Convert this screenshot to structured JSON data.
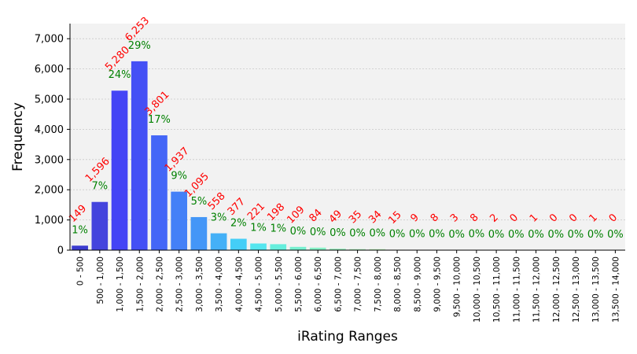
{
  "chart_data": {
    "type": "bar",
    "title": "",
    "xlabel": "iRating Ranges",
    "ylabel": "Frequency",
    "ylim": [
      0,
      7500
    ],
    "yticks": [
      0,
      1000,
      2000,
      3000,
      4000,
      5000,
      6000,
      7000
    ],
    "ytick_labels": [
      "0",
      "1,000",
      "2,000",
      "3,000",
      "4,000",
      "5,000",
      "6,000",
      "7,000"
    ],
    "grid": true,
    "categories": [
      "0 - 500",
      "500 - 1,000",
      "1,000 - 1,500",
      "1,500 - 2,000",
      "2,000 - 2,500",
      "2,500 - 3,000",
      "3,000 - 3,500",
      "3,500 - 4,000",
      "4,000 - 4,500",
      "4,500 - 5,000",
      "5,000 - 5,500",
      "5,500 - 6,000",
      "6,000 - 6,500",
      "6,500 - 7,000",
      "7,000 - 7,500",
      "7,500 - 8,000",
      "8,000 - 8,500",
      "8,500 - 9,000",
      "9,000 - 9,500",
      "9,500 - 10,000",
      "10,000 - 10,500",
      "10,500 - 11,000",
      "11,000 - 11,500",
      "11,500 - 12,000",
      "12,000 - 12,500",
      "12,500 - 13,000",
      "13,000 - 13,500",
      "13,500 - 14,000"
    ],
    "values": [
      149,
      1596,
      5280,
      6253,
      3801,
      1937,
      1095,
      558,
      377,
      221,
      198,
      109,
      84,
      49,
      35,
      34,
      15,
      9,
      8,
      3,
      8,
      2,
      0,
      1,
      0,
      0,
      1,
      0
    ],
    "count_labels": [
      "149",
      "1,596",
      "5,280",
      "6,253",
      "3,801",
      "1,937",
      "1,095",
      "558",
      "377",
      "221",
      "198",
      "109",
      "84",
      "49",
      "35",
      "34",
      "15",
      "9",
      "8",
      "3",
      "8",
      "2",
      "0",
      "1",
      "0",
      "0",
      "1",
      "0"
    ],
    "percent_labels": [
      "1%",
      "7%",
      "24%",
      "29%",
      "17%",
      "9%",
      "5%",
      "3%",
      "2%",
      "1%",
      "1%",
      "0%",
      "0%",
      "0%",
      "0%",
      "0%",
      "0%",
      "0%",
      "0%",
      "0%",
      "0%",
      "0%",
      "0%",
      "0%",
      "0%",
      "0%",
      "0%",
      "0%"
    ],
    "bar_colors": [
      "#3a3acf",
      "#4444dd",
      "#4444f5",
      "#4450f5",
      "#4466f7",
      "#4480f7",
      "#4496f7",
      "#44b0f7",
      "#44cef7",
      "#55e6ef",
      "#66eedd",
      "#77f0d0",
      "#88f2c8",
      "#99f0c0",
      "#aaf0bb",
      "#b8f0b8",
      "#c8f0c0",
      "#d0f0c8",
      "#d8f0d0",
      "#e0f0d8",
      "#e4f0dc",
      "#e8f0e0",
      "#ecf0e4",
      "#eef0e8",
      "#f0f0ec",
      "#f0f0ee",
      "#f0f0f0",
      "#f2f2f2"
    ],
    "count_label_color": "#ff0000",
    "percent_label_color": "#008000",
    "background_color": "#f2f2f2"
  }
}
